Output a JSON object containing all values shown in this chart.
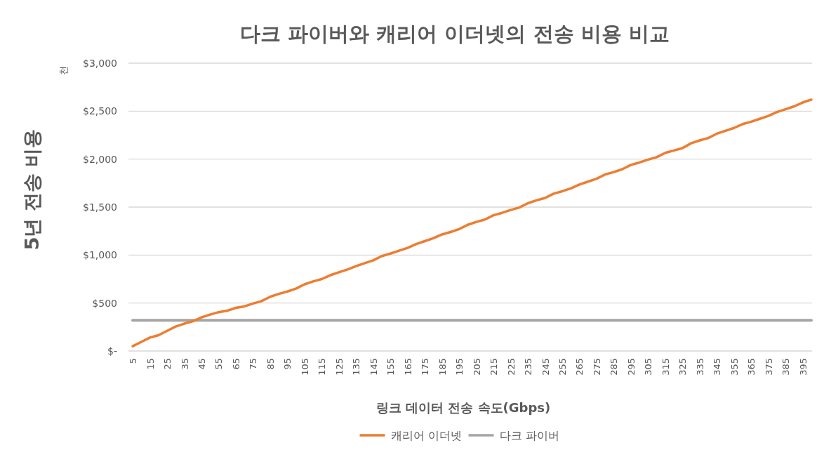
{
  "chart_data": {
    "type": "line",
    "title": "다크 파이버와 캐리어 이더넷의 전송 비용 비교",
    "xlabel": "링크 데이터 전송 속도(Gbps)",
    "ylabel": "5년 전송 비용",
    "annotations": [
      "천"
    ],
    "categories": [
      "5",
      null,
      "15",
      null,
      "25",
      null,
      "35",
      null,
      "45",
      null,
      "55",
      null,
      "65",
      null,
      "75",
      null,
      "85",
      null,
      "95",
      null,
      "105",
      null,
      "115",
      null,
      "125",
      null,
      "135",
      null,
      "145",
      null,
      "155",
      null,
      "165",
      null,
      "175",
      null,
      "185",
      null,
      "195",
      null,
      "205",
      null,
      "215",
      null,
      "225",
      null,
      "235",
      null,
      "245",
      null,
      "255",
      null,
      "265",
      null,
      "275",
      null,
      "285",
      null,
      "295",
      null,
      "305",
      null,
      "315",
      null,
      "325",
      null,
      "335",
      null,
      "345",
      null,
      "355",
      null,
      "365",
      null,
      "375",
      null,
      "385",
      null,
      "395",
      null
    ],
    "series": [
      {
        "name": "캐리어 이더넷",
        "color": "#ed7d31",
        "values": [
          50,
          95,
          140,
          165,
          210,
          255,
          285,
          310,
          350,
          380,
          405,
          420,
          450,
          465,
          495,
          520,
          565,
          595,
          620,
          650,
          695,
          725,
          750,
          790,
          820,
          850,
          885,
          915,
          945,
          990,
          1015,
          1045,
          1075,
          1115,
          1145,
          1175,
          1215,
          1240,
          1270,
          1315,
          1345,
          1370,
          1415,
          1440,
          1470,
          1495,
          1540,
          1570,
          1595,
          1640,
          1665,
          1695,
          1735,
          1765,
          1795,
          1840,
          1865,
          1895,
          1940,
          1965,
          1995,
          2020,
          2065,
          2090,
          2115,
          2165,
          2195,
          2220,
          2265,
          2295,
          2325,
          2365,
          2390,
          2420,
          2450,
          2490,
          2520,
          2550,
          2590,
          2620
        ]
      },
      {
        "name": "다크 파이버",
        "color": "#a5a5a5",
        "values": [
          320,
          320,
          320,
          320,
          320,
          320,
          320,
          320,
          320,
          320,
          320,
          320,
          320,
          320,
          320,
          320,
          320,
          320,
          320,
          320,
          320,
          320,
          320,
          320,
          320,
          320,
          320,
          320,
          320,
          320,
          320,
          320,
          320,
          320,
          320,
          320,
          320,
          320,
          320,
          320,
          320,
          320,
          320,
          320,
          320,
          320,
          320,
          320,
          320,
          320,
          320,
          320,
          320,
          320,
          320,
          320,
          320,
          320,
          320,
          320,
          320,
          320,
          320,
          320,
          320,
          320,
          320,
          320,
          320,
          320,
          320,
          320,
          320,
          320,
          320,
          320,
          320,
          320,
          320,
          320
        ]
      }
    ],
    "ylim": [
      0,
      3000
    ],
    "yticks": [
      {
        "value": 0,
        "label": "$-"
      },
      {
        "value": 500,
        "label": "$500"
      },
      {
        "value": 1000,
        "label": "$1,000"
      },
      {
        "value": 1500,
        "label": "$1,500"
      },
      {
        "value": 2000,
        "label": "$2,000"
      },
      {
        "value": 2500,
        "label": "$2,500"
      },
      {
        "value": 3000,
        "label": "$3,000"
      }
    ],
    "grid": "y",
    "legend": "bottom",
    "line_style": "solid",
    "marker": "none"
  }
}
